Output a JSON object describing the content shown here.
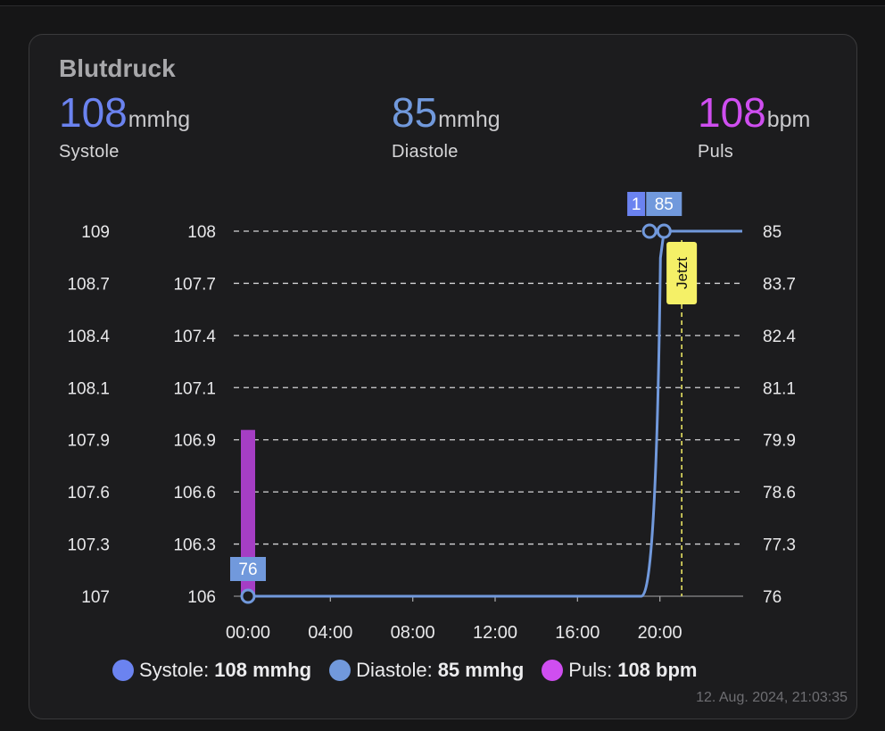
{
  "card": {
    "title": "Blutdruck",
    "timestamp": "12. Aug. 2024, 21:03:35"
  },
  "stats": {
    "systole": {
      "value": "108",
      "unit": "mmhg",
      "label": "Systole",
      "color": "#6b83f0"
    },
    "diastole": {
      "value": "85",
      "unit": "mmhg",
      "label": "Diastole",
      "color": "#7199dc"
    },
    "puls": {
      "value": "108",
      "unit": "bpm",
      "label": "Puls",
      "color": "#cf4ef0"
    }
  },
  "legend": {
    "systole": {
      "name": "Systole:",
      "value": "108 mmhg",
      "color": "#6b83f0"
    },
    "diastole": {
      "name": "Diastole:",
      "value": "85 mmhg",
      "color": "#7199dc"
    },
    "puls": {
      "name": "Puls:",
      "value": "108 bpm",
      "color": "#cf4ef0"
    }
  },
  "chart_data": {
    "type": "line",
    "x_ticks": [
      "00:00",
      "04:00",
      "08:00",
      "12:00",
      "16:00",
      "20:00"
    ],
    "x_range_hours": [
      0,
      24
    ],
    "y_axes": {
      "left_outer": [
        "109",
        "108.7",
        "108.4",
        "108.1",
        "107.9",
        "107.6",
        "107.3",
        "107"
      ],
      "left_inner": [
        "108",
        "107.7",
        "107.4",
        "107.1",
        "106.9",
        "106.6",
        "106.3",
        "106"
      ],
      "right": [
        "85",
        "83.7",
        "82.4",
        "81.1",
        "79.9",
        "78.6",
        "77.3",
        "76"
      ]
    },
    "ylim_inner": [
      106,
      108
    ],
    "series": [
      {
        "name": "Diastole",
        "color": "#7199dc",
        "points": [
          [
            0,
            76
          ],
          [
            19.1,
            76
          ],
          [
            20.2,
            85
          ],
          [
            24,
            85
          ]
        ],
        "ylim": [
          76,
          85
        ]
      },
      {
        "name": "Systole",
        "color": "#6b83f0",
        "points": [
          [
            19.5,
            108
          ]
        ],
        "ylim": [
          106,
          108
        ]
      },
      {
        "name": "Puls",
        "color": "#a53ec4",
        "bar_at_hour": 0,
        "bar_top": 80.1,
        "ylim": [
          76,
          85
        ]
      }
    ],
    "markers": [
      {
        "hour": 0,
        "value": 76,
        "label": "76"
      },
      {
        "hour": 19.5,
        "value": 85,
        "label": "1"
      },
      {
        "hour": 20.2,
        "value": 85,
        "label": "85"
      }
    ],
    "now_marker": {
      "hour": 21.06,
      "label": "Jetzt",
      "color": "#f5f067"
    },
    "grid": true
  }
}
